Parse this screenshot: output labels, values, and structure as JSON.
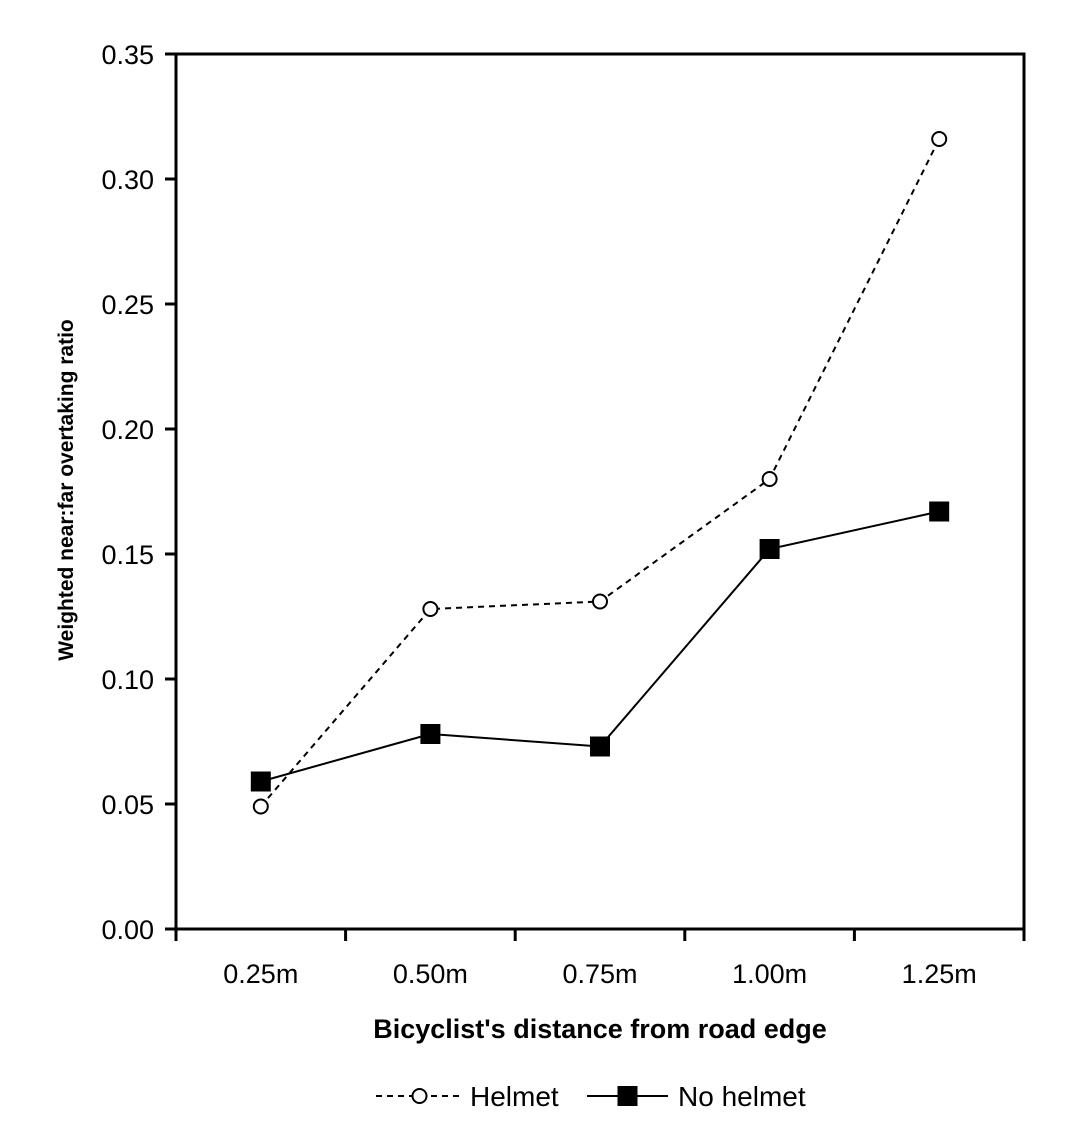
{
  "chart_data": {
    "type": "line",
    "title": "",
    "xlabel": "Bicyclist's distance from road edge",
    "ylabel": "Weighted near:far overtaking ratio",
    "categories": [
      "0.25m",
      "0.50m",
      "0.75m",
      "1.00m",
      "1.25m"
    ],
    "ylim": [
      0,
      0.35
    ],
    "yticks": [
      "0.00",
      "0.05",
      "0.10",
      "0.15",
      "0.20",
      "0.25",
      "0.30",
      "0.35"
    ],
    "grid": false,
    "legend_position": "bottom",
    "series": [
      {
        "name": "Helmet",
        "values": [
          0.049,
          0.128,
          0.131,
          0.18,
          0.316
        ],
        "line_style": "dashed",
        "marker": "open-circle",
        "color": "#000000"
      },
      {
        "name": "No helmet",
        "values": [
          0.059,
          0.078,
          0.073,
          0.152,
          0.167
        ],
        "line_style": "solid",
        "marker": "filled-square",
        "color": "#000000"
      }
    ]
  }
}
